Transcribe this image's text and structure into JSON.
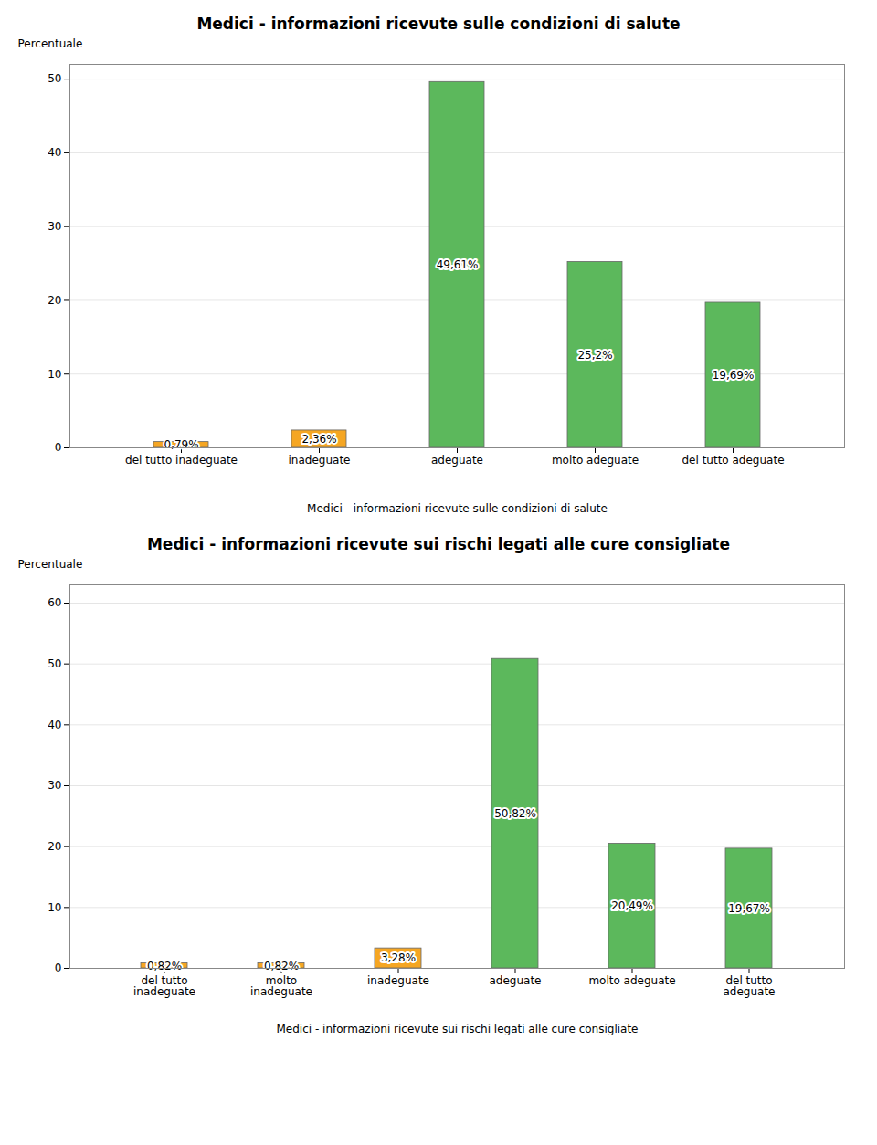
{
  "chart_data": [
    {
      "type": "bar",
      "title": "Medici - informazioni ricevute sulle condizioni di salute",
      "xlabel": "Medici - informazioni ricevute sulle condizioni di salute",
      "ylabel": "Percentuale",
      "categories": [
        "del tutto inadeguate",
        "inadeguate",
        "adeguate",
        "molto adeguate",
        "del tutto adeguate"
      ],
      "values": [
        0.79,
        2.36,
        49.61,
        25.2,
        19.69
      ],
      "value_labels": [
        "0,79%",
        "2,36%",
        "49,61%",
        "25,2%",
        "19,69%"
      ],
      "colors": [
        "#F5A623",
        "#F5A623",
        "#5CB85C",
        "#5CB85C",
        "#5CB85C"
      ],
      "data_labels": true,
      "ylim": [
        0,
        52
      ],
      "yticks": [
        0,
        10,
        20,
        30,
        40,
        50
      ],
      "grid": true
    },
    {
      "type": "bar",
      "title": "Medici - informazioni ricevute sui rischi legati alle cure consigliate",
      "xlabel": "Medici - informazioni ricevute sui rischi legati alle cure consigliate",
      "ylabel": "Percentuale",
      "categories": [
        "del tutto\ninadeguate",
        "molto\ninadeguate",
        "inadeguate",
        "adeguate",
        "molto adeguate",
        "del tutto\nadeguate"
      ],
      "values": [
        0.82,
        0.82,
        3.28,
        50.82,
        20.49,
        19.67
      ],
      "value_labels": [
        "0,82%",
        "0,82%",
        "3,28%",
        "50,82%",
        "20,49%",
        "19,67%"
      ],
      "colors": [
        "#F5A623",
        "#F5A623",
        "#F5A623",
        "#5CB85C",
        "#5CB85C",
        "#5CB85C"
      ],
      "data_labels": true,
      "ylim": [
        0,
        63
      ],
      "yticks": [
        0,
        10,
        20,
        30,
        40,
        50,
        60
      ],
      "grid": true
    }
  ]
}
